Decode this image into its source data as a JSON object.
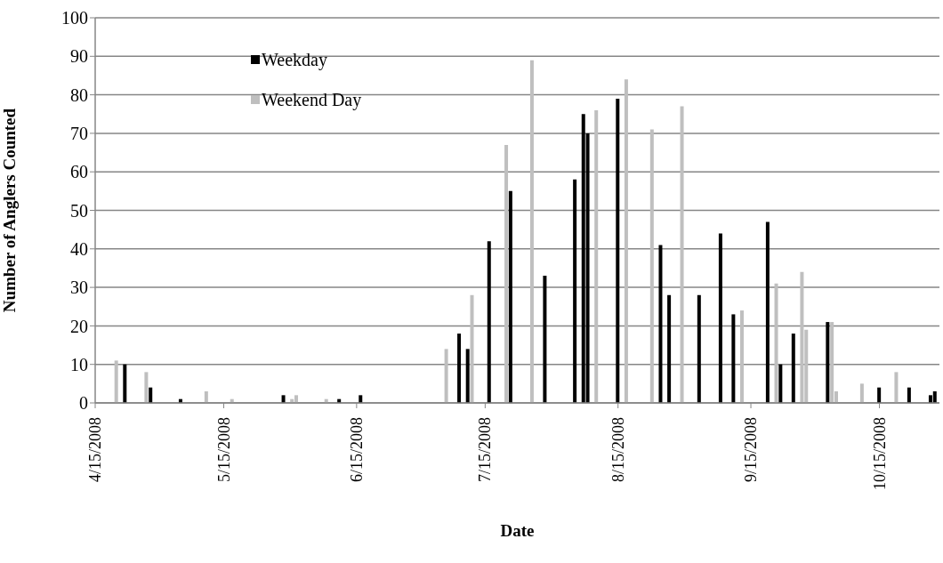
{
  "chart_data": {
    "type": "bar",
    "xlabel": "Date",
    "ylabel": "Number of Anglers Counted",
    "xlim": [
      "2008-04-15",
      "2008-10-29"
    ],
    "xticks": [
      {
        "value": "2008-04-15",
        "label": "4/15/2008"
      },
      {
        "value": "2008-05-15",
        "label": "5/15/2008"
      },
      {
        "value": "2008-06-15",
        "label": "6/15/2008"
      },
      {
        "value": "2008-07-15",
        "label": "7/15/2008"
      },
      {
        "value": "2008-08-15",
        "label": "8/15/2008"
      },
      {
        "value": "2008-09-15",
        "label": "9/15/2008"
      },
      {
        "value": "2008-10-15",
        "label": "10/15/2008"
      }
    ],
    "ylim": [
      0,
      100
    ],
    "yticks": [
      0,
      10,
      20,
      30,
      40,
      50,
      60,
      70,
      80,
      90,
      100
    ],
    "grid": "y",
    "legend": "top left",
    "series": [
      {
        "name": "Weekday",
        "color": "#000000",
        "x": [
          "2008-04-22",
          "2008-04-28",
          "2008-05-05",
          "2008-05-29",
          "2008-06-11",
          "2008-06-16",
          "2008-07-09",
          "2008-07-11",
          "2008-07-16",
          "2008-07-21",
          "2008-07-29",
          "2008-08-05",
          "2008-08-07",
          "2008-08-08",
          "2008-08-15",
          "2008-08-25",
          "2008-08-27",
          "2008-09-03",
          "2008-09-08",
          "2008-09-11",
          "2008-09-19",
          "2008-09-22",
          "2008-09-25",
          "2008-10-03",
          "2008-10-15",
          "2008-10-22",
          "2008-10-27",
          "2008-10-28"
        ],
        "values": [
          10,
          4,
          1,
          2,
          1,
          2,
          18,
          14,
          42,
          55,
          33,
          58,
          75,
          70,
          79,
          41,
          28,
          28,
          44,
          23,
          47,
          10,
          18,
          21,
          4,
          4,
          2,
          3
        ]
      },
      {
        "name": "Weekend Day",
        "color": "#bfbfbf",
        "x": [
          "2008-04-20",
          "2008-04-27",
          "2008-05-11",
          "2008-05-17",
          "2008-05-31",
          "2008-06-01",
          "2008-06-08",
          "2008-07-06",
          "2008-07-12",
          "2008-07-20",
          "2008-07-26",
          "2008-08-10",
          "2008-08-17",
          "2008-08-23",
          "2008-08-30",
          "2008-09-13",
          "2008-09-21",
          "2008-09-27",
          "2008-09-28",
          "2008-10-04",
          "2008-10-05",
          "2008-10-11",
          "2008-10-19"
        ],
        "values": [
          11,
          8,
          3,
          1,
          1,
          2,
          1,
          14,
          28,
          67,
          89,
          76,
          84,
          71,
          77,
          24,
          31,
          34,
          19,
          21,
          3,
          5,
          8
        ]
      }
    ]
  }
}
